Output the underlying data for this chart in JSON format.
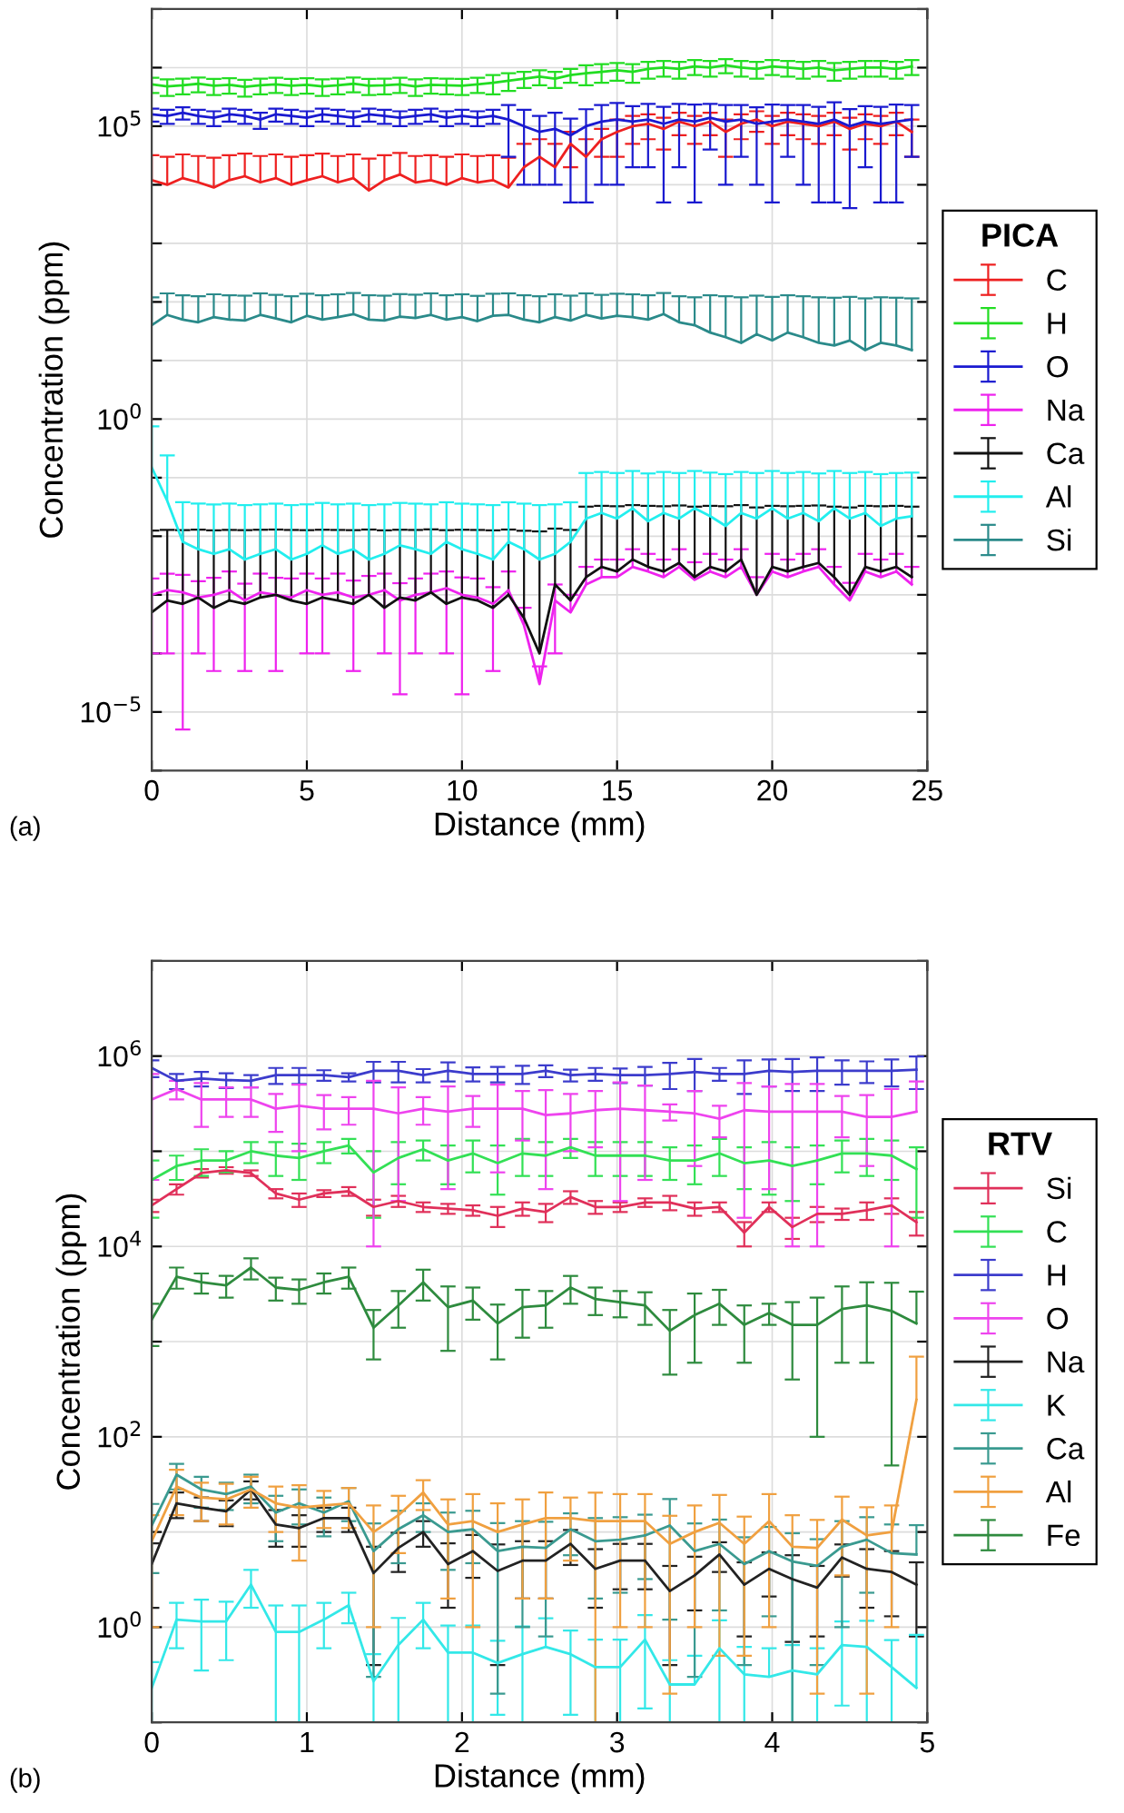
{
  "chart_data": [
    {
      "type": "line",
      "xlabel": "Distance (mm)",
      "ylabel": "Concentration (ppm)",
      "legend_title": "PICA",
      "legend": "right",
      "grid": true,
      "log": true,
      "marker": "none",
      "line_style": "solid",
      "annotations": [
        "(a)"
      ],
      "xlim": [
        0,
        25
      ],
      "xticks": [
        0,
        5,
        10,
        15,
        20,
        25
      ],
      "ylim": [
        1e-06,
        10000000.0
      ],
      "yticks": [
        {
          "value": 1e-06,
          "label": null
        },
        {
          "value": 1e-05,
          "label": "10$^{−5}$"
        },
        {
          "value": 0.0001,
          "label": null
        },
        {
          "value": 0.001,
          "label": null
        },
        {
          "value": 0.01,
          "label": null
        },
        {
          "value": 0.1,
          "label": null
        },
        {
          "value": 1,
          "label": "10$^{0}$"
        },
        {
          "value": 10,
          "label": null
        },
        {
          "value": 100,
          "label": null
        },
        {
          "value": 1000,
          "label": null
        },
        {
          "value": 10000,
          "label": null
        },
        {
          "value": 100000,
          "label": "10$^{5}$"
        },
        {
          "value": 1000000,
          "label": null
        },
        {
          "value": 10000000,
          "label": null
        }
      ],
      "x": [
        0,
        0.5,
        1,
        1.5,
        2,
        2.5,
        3,
        3.5,
        4,
        4.5,
        5,
        5.5,
        6,
        6.5,
        7,
        7.5,
        8,
        8.5,
        9,
        9.5,
        10,
        10.5,
        11,
        11.5,
        12,
        12.5,
        13,
        13.5,
        14,
        14.5,
        15,
        15.5,
        16,
        16.5,
        17,
        17.5,
        18,
        18.5,
        19,
        19.5,
        20,
        20.5,
        21,
        21.5,
        22,
        22.5,
        23,
        23.5,
        24,
        24.5
      ],
      "series": [
        {
          "name": "C",
          "color": "#ee2020",
          "values": [
            12000.0,
            10000.0,
            13000.0,
            11000.0,
            9000.0,
            12000.0,
            14000.0,
            11000.0,
            13000.0,
            10000.0,
            12000.0,
            14000.0,
            11000.0,
            13000.0,
            8000.0,
            12000.0,
            15000.0,
            11000.0,
            12000.0,
            10000.0,
            13000.0,
            11000.0,
            12000.0,
            9000.0,
            20000.0,
            30000.0,
            20000.0,
            50000.0,
            30000.0,
            60000.0,
            80000.0,
            100000.0,
            110000.0,
            90000.0,
            120000.0,
            100000.0,
            120000.0,
            80000.0,
            110000.0,
            130000.0,
            100000.0,
            120000.0,
            110000.0,
            100000.0,
            120000.0,
            90000.0,
            110000.0,
            100000.0,
            120000.0,
            80000.0
          ],
          "errors": [
            20000.0,
            20000.0,
            20000.0,
            20000.0,
            20000.0,
            20000.0,
            20000.0,
            20000.0,
            20000.0,
            20000.0,
            20000.0,
            20000.0,
            20000.0,
            20000.0,
            20000.0,
            20000.0,
            20000.0,
            20000.0,
            20000.0,
            20000.0,
            20000.0,
            20000.0,
            20000.0,
            20000.0,
            30000.0,
            30000.0,
            30000.0,
            30000.0,
            30000.0,
            30000.0,
            50000.0,
            50000.0,
            50000.0,
            50000.0,
            50000.0,
            50000.0,
            50000.0,
            50000.0,
            50000.0,
            50000.0,
            50000.0,
            50000.0,
            50000.0,
            50000.0,
            50000.0,
            50000.0,
            50000.0,
            50000.0,
            50000.0,
            50000.0
          ]
        },
        {
          "name": "H",
          "color": "#22dd22",
          "values": [
            520000.0,
            480000.0,
            500000.0,
            530000.0,
            490000.0,
            510000.0,
            470000.0,
            500000.0,
            520000.0,
            490000.0,
            510000.0,
            480000.0,
            500000.0,
            530000.0,
            490000.0,
            500000.0,
            520000.0,
            480000.0,
            510000.0,
            500000.0,
            490000.0,
            520000.0,
            550000.0,
            600000.0,
            650000.0,
            700000.0,
            650000.0,
            750000.0,
            800000.0,
            850000.0,
            900000.0,
            850000.0,
            950000.0,
            1000000.0,
            950000.0,
            1050000.0,
            1000000.0,
            1100000.0,
            1000000.0,
            950000.0,
            1050000.0,
            1000000.0,
            950000.0,
            1000000.0,
            900000.0,
            950000.0,
            1000000.0,
            1000000.0,
            950000.0,
            1050000.0
          ],
          "errors": [
            150000.0,
            150000.0,
            150000.0,
            150000.0,
            150000.0,
            150000.0,
            150000.0,
            150000.0,
            150000.0,
            150000.0,
            150000.0,
            150000.0,
            150000.0,
            150000.0,
            150000.0,
            150000.0,
            150000.0,
            150000.0,
            150000.0,
            150000.0,
            150000.0,
            150000.0,
            200000.0,
            200000.0,
            200000.0,
            200000.0,
            200000.0,
            200000.0,
            300000.0,
            300000.0,
            300000.0,
            300000.0,
            300000.0,
            300000.0,
            300000.0,
            300000.0,
            300000.0,
            300000.0,
            300000.0,
            300000.0,
            300000.0,
            300000.0,
            300000.0,
            300000.0,
            300000.0,
            300000.0,
            300000.0,
            300000.0,
            300000.0,
            300000.0
          ]
        },
        {
          "name": "O",
          "color": "#1a1ad0",
          "values": [
            160000.0,
            150000.0,
            170000.0,
            150000.0,
            140000.0,
            160000.0,
            150000.0,
            130000.0,
            160000.0,
            150000.0,
            140000.0,
            160000.0,
            150000.0,
            140000.0,
            160000.0,
            150000.0,
            140000.0,
            150000.0,
            160000.0,
            140000.0,
            150000.0,
            140000.0,
            150000.0,
            130000.0,
            100000.0,
            80000.0,
            90000.0,
            70000.0,
            100000.0,
            120000.0,
            130000.0,
            120000.0,
            130000.0,
            110000.0,
            130000.0,
            120000.0,
            140000.0,
            120000.0,
            130000.0,
            110000.0,
            120000.0,
            130000.0,
            120000.0,
            110000.0,
            130000.0,
            100000.0,
            120000.0,
            110000.0,
            120000.0,
            130000.0
          ],
          "errors": [
            40000.0,
            40000.0,
            40000.0,
            40000.0,
            40000.0,
            40000.0,
            40000.0,
            40000.0,
            40000.0,
            40000.0,
            40000.0,
            40000.0,
            40000.0,
            40000.0,
            40000.0,
            40000.0,
            40000.0,
            40000.0,
            40000.0,
            40000.0,
            40000.0,
            40000.0,
            40000.0,
            100000.0,
            90000.0,
            70000.0,
            80000.0,
            65000.0,
            95000.0,
            110000.0,
            120000.0,
            100000.0,
            110000.0,
            105000.0,
            110000.0,
            115000.0,
            100000.0,
            110000.0,
            100000.0,
            100000.0,
            115000.0,
            100000.0,
            110000.0,
            105000.0,
            125000.0,
            96000.0,
            100000.0,
            105000.0,
            115000.0,
            100000.0
          ]
        },
        {
          "name": "Na",
          "color": "#ee22ee",
          "values": [
            0.001,
            0.0012,
            0.0011,
            0.0009,
            0.001,
            0.0012,
            0.0008,
            0.0011,
            0.001,
            0.0009,
            0.0012,
            0.001,
            0.0011,
            0.0009,
            0.001,
            0.0012,
            0.0008,
            0.001,
            0.0011,
            0.0013,
            0.001,
            0.0009,
            0.0007,
            0.0012,
            0.0003,
            3e-05,
            0.0008,
            0.0005,
            0.0015,
            0.002,
            0.002,
            0.003,
            0.0025,
            0.002,
            0.003,
            0.0018,
            0.0025,
            0.002,
            0.003,
            0.001,
            0.0025,
            0.002,
            0.0025,
            0.003,
            0.0015,
            0.0008,
            0.0025,
            0.002,
            0.0025,
            0.0015
          ],
          "errors": [
            0.0009,
            0.0011,
            0.001095,
            0.0008,
            0.00095,
            0.0013,
            0.00075,
            0.0012,
            0.00095,
            0.001,
            0.0011,
            0.0009,
            0.0012,
            0.00085,
            0.0011,
            0.0011,
            0.00078,
            0.0009,
            0.0012,
            0.0012,
            0.00098,
            0.001,
            0.00065,
            0.0013,
            0.0003,
            3e-05,
            0.0007,
            0.0005,
            0.0015,
            0.002,
            0.002,
            0.003,
            0.0025,
            0.002,
            0.003,
            0.0018,
            0.0025,
            0.002,
            0.003,
            0.001,
            0.0025,
            0.002,
            0.0025,
            0.003,
            0.0015,
            0.0008,
            0.0025,
            0.002,
            0.0025,
            0.0015
          ]
        },
        {
          "name": "Ca",
          "color": "#111111",
          "values": [
            0.0005,
            0.0008,
            0.0007,
            0.0009,
            0.0006,
            0.0008,
            0.0007,
            0.0009,
            0.001,
            0.0008,
            0.0007,
            0.0009,
            0.0008,
            0.0007,
            0.001,
            0.0006,
            0.0009,
            0.0008,
            0.0011,
            0.0007,
            0.0009,
            0.0008,
            0.0006,
            0.001,
            0.0004,
            0.0001,
            0.0015,
            0.0008,
            0.002,
            0.003,
            0.0025,
            0.004,
            0.003,
            0.0025,
            0.0035,
            0.002,
            0.003,
            0.0025,
            0.004,
            0.001,
            0.003,
            0.0025,
            0.003,
            0.0035,
            0.002,
            0.001,
            0.003,
            0.0025,
            0.003,
            0.002
          ],
          "errors": [
            0.012,
            0.012,
            0.012,
            0.012,
            0.012,
            0.012,
            0.012,
            0.012,
            0.012,
            0.012,
            0.012,
            0.012,
            0.012,
            0.012,
            0.012,
            0.012,
            0.012,
            0.012,
            0.012,
            0.012,
            0.012,
            0.012,
            0.012,
            0.012,
            0.012,
            0.012,
            0.012,
            0.012,
            0.03,
            0.03,
            0.03,
            0.03,
            0.03,
            0.03,
            0.03,
            0.03,
            0.03,
            0.03,
            0.03,
            0.03,
            0.03,
            0.03,
            0.03,
            0.03,
            0.03,
            0.03,
            0.03,
            0.03,
            0.03,
            0.03
          ]
        },
        {
          "name": "Al",
          "color": "#22eeee",
          "values": [
            0.15,
            0.04,
            0.008,
            0.006,
            0.005,
            0.006,
            0.004,
            0.005,
            0.006,
            0.004,
            0.005,
            0.007,
            0.005,
            0.006,
            0.004,
            0.005,
            0.007,
            0.006,
            0.005,
            0.008,
            0.006,
            0.005,
            0.004,
            0.008,
            0.006,
            0.004,
            0.005,
            0.008,
            0.02,
            0.025,
            0.02,
            0.03,
            0.018,
            0.025,
            0.02,
            0.03,
            0.022,
            0.015,
            0.025,
            0.02,
            0.03,
            0.02,
            0.025,
            0.018,
            0.03,
            0.02,
            0.025,
            0.015,
            0.02,
            0.022
          ],
          "errors": [
            0.6,
            0.2,
            0.03,
            0.03,
            0.03,
            0.03,
            0.03,
            0.03,
            0.03,
            0.03,
            0.03,
            0.03,
            0.03,
            0.03,
            0.03,
            0.03,
            0.03,
            0.03,
            0.03,
            0.03,
            0.03,
            0.03,
            0.03,
            0.03,
            0.03,
            0.03,
            0.03,
            0.03,
            0.1,
            0.1,
            0.1,
            0.1,
            0.1,
            0.1,
            0.1,
            0.1,
            0.1,
            0.1,
            0.1,
            0.1,
            0.1,
            0.1,
            0.1,
            0.1,
            0.1,
            0.1,
            0.1,
            0.1,
            0.1,
            0.1
          ]
        },
        {
          "name": "Si",
          "color": "#2a8a8a",
          "values": [
            40,
            60,
            50,
            45,
            55,
            50,
            48,
            60,
            52,
            45,
            58,
            50,
            55,
            62,
            50,
            48,
            56,
            53,
            60,
            50,
            55,
            47,
            58,
            60,
            50,
            45,
            55,
            48,
            60,
            52,
            58,
            55,
            50,
            62,
            45,
            40,
            30,
            25,
            20,
            28,
            22,
            30,
            25,
            20,
            18,
            22,
            15,
            20,
            18,
            15
          ],
          "errors": [
            80,
            80,
            80,
            80,
            80,
            80,
            80,
            80,
            80,
            80,
            80,
            80,
            80,
            80,
            80,
            80,
            80,
            80,
            80,
            80,
            80,
            80,
            80,
            80,
            80,
            80,
            80,
            80,
            80,
            80,
            80,
            80,
            80,
            80,
            80,
            80,
            100,
            100,
            100,
            100,
            100,
            100,
            100,
            100,
            100,
            100,
            100,
            100,
            100,
            100
          ]
        }
      ]
    },
    {
      "type": "line",
      "xlabel": "Distance (mm)",
      "ylabel": "Concentration (ppm)",
      "legend_title": "RTV",
      "legend": "right",
      "grid": true,
      "log": true,
      "marker": "none",
      "line_style": "solid",
      "annotations": [
        "(b)"
      ],
      "xlim": [
        0,
        5
      ],
      "xticks": [
        0,
        1,
        2,
        3,
        4,
        5
      ],
      "ylim": [
        0.1,
        10000000.0
      ],
      "yticks": [
        {
          "value": 0.1,
          "label": null
        },
        {
          "value": 1,
          "label": "10$^{0}$"
        },
        {
          "value": 10,
          "label": null
        },
        {
          "value": 100,
          "label": "10$^{2}$"
        },
        {
          "value": 1000,
          "label": null
        },
        {
          "value": 10000,
          "label": "10$^{4}$"
        },
        {
          "value": 100000,
          "label": null
        },
        {
          "value": 1000000,
          "label": "10$^{6}$"
        },
        {
          "value": 10000000,
          "label": null
        }
      ],
      "x": [
        0,
        0.16,
        0.32,
        0.48,
        0.64,
        0.8,
        0.95,
        1.11,
        1.27,
        1.43,
        1.59,
        1.75,
        1.91,
        2.07,
        2.23,
        2.39,
        2.54,
        2.7,
        2.86,
        3.02,
        3.18,
        3.34,
        3.5,
        3.66,
        3.82,
        3.98,
        4.13,
        4.29,
        4.45,
        4.61,
        4.77,
        4.93
      ],
      "series": [
        {
          "name": "Si",
          "color": "#e0305a",
          "values": [
            27000.0,
            40000.0,
            59000.0,
            63000.0,
            59000.0,
            36000.0,
            31000.0,
            36000.0,
            38000.0,
            26000.0,
            30000.0,
            26000.0,
            25000.0,
            24000.0,
            21000.0,
            25000.0,
            23000.0,
            33000.0,
            26000.0,
            26000.0,
            29000.0,
            29000.0,
            25000.0,
            26000.0,
            14000.0,
            26000.0,
            16000.0,
            22000.0,
            22000.0,
            24000.0,
            27000.0,
            18000.0
          ],
          "errors": [
            4000.0,
            5000.0,
            6000.0,
            5000.0,
            4000.0,
            4000.0,
            5000.0,
            3000.0,
            4000.0,
            5000.0,
            4000.0,
            3000.0,
            3000.0,
            3000.0,
            5000.0,
            4000.0,
            5000.0,
            5000.0,
            4000.0,
            3000.0,
            3000.0,
            5000.0,
            4000.0,
            3000.0,
            4000.0,
            3000.0,
            4000.0,
            4000.0,
            3000.0,
            5000.0,
            5000.0,
            5000.0
          ]
        },
        {
          "name": "C",
          "color": "#33e055",
          "values": [
            50000.0,
            70000.0,
            80000.0,
            80000.0,
            100000.0,
            90000.0,
            85000.0,
            100000.0,
            115000.0,
            60000.0,
            85000.0,
            105000.0,
            80000.0,
            95000.0,
            75000.0,
            95000.0,
            90000.0,
            110000.0,
            90000.0,
            90000.0,
            90000.0,
            80000.0,
            80000.0,
            95000.0,
            75000.0,
            80000.0,
            70000.0,
            80000.0,
            95000.0,
            95000.0,
            90000.0,
            65000.0
          ],
          "errors": [
            30000.0,
            20000.0,
            25000.0,
            20000.0,
            25000.0,
            35000.0,
            35000.0,
            25000.0,
            20000.0,
            40000.0,
            40000.0,
            25000.0,
            35000.0,
            35000.0,
            40000.0,
            40000.0,
            35000.0,
            25000.0,
            35000.0,
            35000.0,
            35000.0,
            30000.0,
            35000.0,
            40000.0,
            35000.0,
            45000.0,
            40000.0,
            35000.0,
            35000.0,
            40000.0,
            40000.0,
            45000.0
          ]
        },
        {
          "name": "H",
          "color": "#3c3ccc",
          "values": [
            750000.0,
            550000.0,
            580000.0,
            560000.0,
            550000.0,
            630000.0,
            630000.0,
            630000.0,
            600000.0,
            700000.0,
            700000.0,
            630000.0,
            700000.0,
            650000.0,
            650000.0,
            650000.0,
            700000.0,
            630000.0,
            650000.0,
            630000.0,
            630000.0,
            650000.0,
            680000.0,
            650000.0,
            650000.0,
            700000.0,
            680000.0,
            700000.0,
            700000.0,
            700000.0,
            700000.0,
            720000.0
          ],
          "errors": [
            150000.0,
            100000.0,
            100000.0,
            100000.0,
            80000.0,
            120000.0,
            120000.0,
            80000.0,
            60000.0,
            170000.0,
            170000.0,
            100000.0,
            160000.0,
            110000.0,
            120000.0,
            140000.0,
            100000.0,
            90000.0,
            100000.0,
            110000.0,
            140000.0,
            200000.0,
            250000.0,
            100000.0,
            250000.0,
            220000.0,
            250000.0,
            270000.0,
            200000.0,
            180000.0,
            220000.0,
            270000.0
          ]
        },
        {
          "name": "O",
          "color": "#ee44ee",
          "values": [
            350000.0,
            450000.0,
            350000.0,
            350000.0,
            350000.0,
            280000.0,
            300000.0,
            280000.0,
            280000.0,
            280000.0,
            250000.0,
            280000.0,
            260000.0,
            280000.0,
            280000.0,
            280000.0,
            240000.0,
            250000.0,
            270000.0,
            280000.0,
            270000.0,
            260000.0,
            250000.0,
            220000.0,
            270000.0,
            260000.0,
            260000.0,
            260000.0,
            260000.0,
            230000.0,
            230000.0,
            260000.0
          ],
          "errors": [
            300000.0,
            100000.0,
            170000.0,
            120000.0,
            120000.0,
            120000.0,
            200000.0,
            110000.0,
            90000.0,
            270000.0,
            220000.0,
            90000.0,
            220000.0,
            100000.0,
            220000.0,
            150000.0,
            200000.0,
            150000.0,
            160000.0,
            250000.0,
            220000.0,
            50000.0,
            180000.0,
            80000.0,
            250000.0,
            220000.0,
            250000.0,
            250000.0,
            120000.0,
            160000.0,
            220000.0,
            280000.0
          ]
        },
        {
          "name": "Na",
          "color": "#222222",
          "values": [
            4.6,
            20,
            18,
            16.5,
            28,
            12,
            11,
            14,
            14,
            3.7,
            6.8,
            10,
            4.6,
            6.3,
            3.9,
            5,
            5,
            7.5,
            4.1,
            5,
            5,
            2.4,
            3.5,
            5.8,
            2.8,
            4.1,
            3.2,
            2.6,
            5.4,
            4.1,
            3.8,
            2.8
          ],
          "errors": [
            3,
            6,
            5,
            5,
            6,
            5,
            4,
            4,
            4,
            3.3,
            3,
            3,
            3,
            3,
            3.5,
            3,
            3,
            3,
            2.5,
            2.5,
            2.5,
            2,
            2,
            2,
            2,
            2,
            2.5,
            1.8,
            2,
            2.5,
            2.5,
            2
          ]
        },
        {
          "name": "K",
          "color": "#33e8e8",
          "values": [
            0.23,
            1.2,
            1.15,
            1.15,
            2.8,
            0.89,
            0.89,
            1.2,
            1.7,
            0.27,
            0.65,
            1.2,
            0.54,
            0.54,
            0.42,
            0.52,
            0.62,
            0.52,
            0.38,
            0.38,
            0.74,
            0.25,
            0.25,
            0.6,
            0.32,
            0.3,
            0.35,
            0.32,
            0.65,
            0.62,
            0.38,
            0.23
          ],
          "errors": [
            0.2,
            0.6,
            0.8,
            0.7,
            1.2,
            0.8,
            0.8,
            0.6,
            0.6,
            0.25,
            0.6,
            0.6,
            0.5,
            0.5,
            0.3,
            0.5,
            0.62,
            0.4,
            0.36,
            0.36,
            0.6,
            0.2,
            0.25,
            0.58,
            0.3,
            0.3,
            0.3,
            0.28,
            0.5,
            0.55,
            0.35,
            0.6
          ]
        },
        {
          "name": "Ca",
          "color": "#3a9a90",
          "values": [
            11.7,
            40,
            28,
            25,
            30,
            16,
            20,
            16,
            21,
            6.3,
            10.7,
            15,
            10,
            10.7,
            6.3,
            7,
            6.8,
            10.7,
            8,
            8.3,
            9.2,
            11.7,
            6.3,
            7.5,
            4.6,
            6.3,
            4.9,
            4.4,
            7,
            8.3,
            6,
            5.8
          ],
          "errors": [
            8,
            12,
            10,
            8,
            10,
            8,
            8,
            7,
            8,
            6,
            6,
            5,
            6,
            6,
            6.1,
            6,
            6,
            5,
            6,
            6,
            6,
            10.5,
            6,
            6,
            4.2,
            5,
            4.8,
            4,
            6,
            6,
            6,
            6
          ]
        },
        {
          "name": "Al",
          "color": "#f0a040",
          "values": [
            8,
            30,
            23,
            22,
            28,
            20,
            18,
            19,
            20,
            10,
            15,
            26,
            12,
            13,
            10,
            12,
            14,
            14,
            13,
            13,
            13,
            7.5,
            10,
            12.5,
            7.5,
            13,
            7,
            6.8,
            13.5,
            9.2,
            10,
            245
          ],
          "errors": [
            7,
            15,
            10,
            10,
            10,
            10,
            13,
            8,
            9,
            9,
            9,
            9,
            10,
            12,
            10,
            10,
            12,
            9,
            12.9,
            12,
            12,
            7.3,
            9,
            12,
            7,
            12,
            8,
            6.6,
            10,
            9,
            9,
            450
          ]
        },
        {
          "name": "Fe",
          "color": "#2e8b3e",
          "values": [
            1700.0,
            4800.0,
            4200.0,
            3900.0,
            6000.0,
            3700.0,
            3500.0,
            4200.0,
            4800.0,
            1400.0,
            2400.0,
            4200.0,
            2300.0,
            2700.0,
            1550.0,
            2300.0,
            2400.0,
            3700.0,
            2800.0,
            2600.0,
            2400.0,
            1300.0,
            1900.0,
            2500.0,
            1500.0,
            2000.0,
            1500.0,
            1500.0,
            2200.0,
            2400.0,
            2100.0,
            1550.0
          ],
          "errors": [
            800.0,
            1200.0,
            1000.0,
            1000.0,
            1500.0,
            1000.0,
            1000.0,
            1000.0,
            1200.0,
            750.0,
            1000.0,
            1500.0,
            1500.0,
            1000.0,
            900.0,
            1200.0,
            1000.0,
            1200.0,
            900.0,
            800.0,
            900.0,
            850.0,
            1300.0,
            1000.0,
            900.0,
            500.0,
            1100.0,
            1400.0,
            1600.0,
            1800.0,
            2050.0,
            1800.0
          ]
        }
      ]
    }
  ]
}
